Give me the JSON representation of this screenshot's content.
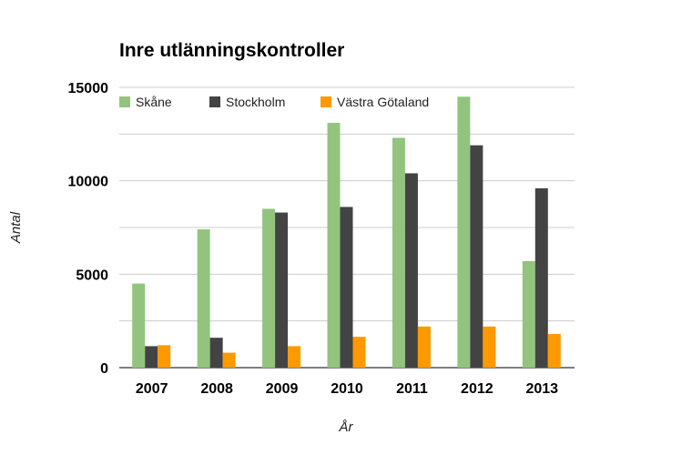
{
  "chart_data": {
    "type": "bar",
    "title": "Inre utlänningskontroller",
    "xlabel": "År",
    "ylabel": "Antal",
    "categories": [
      "2007",
      "2008",
      "2009",
      "2010",
      "2011",
      "2012",
      "2013"
    ],
    "series": [
      {
        "name": "Skåne",
        "color": "#93c47d",
        "values": [
          4500,
          7400,
          8500,
          13100,
          12300,
          14500,
          5700
        ]
      },
      {
        "name": "Stockholm",
        "color": "#434343",
        "values": [
          1150,
          1600,
          8300,
          8600,
          10400,
          11900,
          9600
        ]
      },
      {
        "name": "Västra Götaland",
        "color": "#ff9900",
        "values": [
          1200,
          800,
          1150,
          1650,
          2200,
          2200,
          1800
        ]
      }
    ],
    "ylim": [
      0,
      15000
    ],
    "yticks": [
      0,
      5000,
      10000,
      15000
    ],
    "grid": true,
    "legend_position": "top-left"
  }
}
